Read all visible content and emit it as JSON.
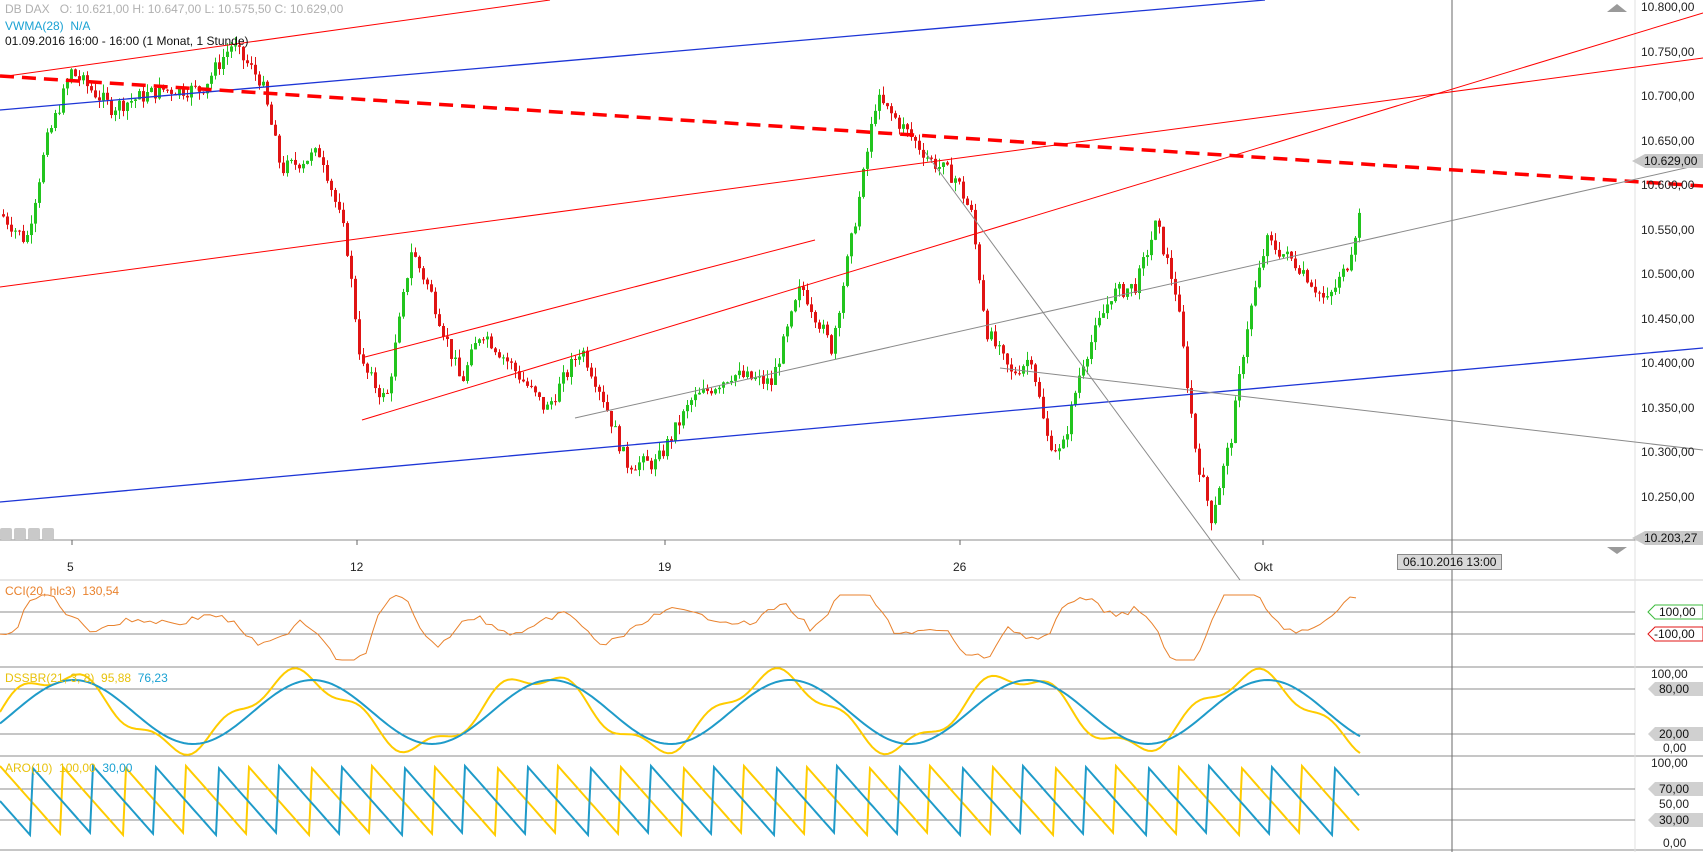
{
  "header": {
    "symbol": "DB DAX",
    "ohlc": "O: 10.621,00   H: 10.647,00   L: 10.575,50   C: 10.629,00",
    "vwma_label": "VWMA(28)",
    "vwma_value": "N/A",
    "period": "01.09.2016 16:00 - 16:00 (1 Monat, 1 Stunde)"
  },
  "price_axis": {
    "labels": [
      "10.800,00",
      "10.750,00",
      "10.700,00",
      "10.650,00",
      "10.600,00",
      "10.550,00",
      "10.500,00",
      "10.450,00",
      "10.400,00",
      "10.350,00",
      "10.300,00",
      "10.250,00"
    ],
    "current_price": "10.629,00",
    "low_marker": "10.203,27"
  },
  "date_axis": {
    "labels": [
      "5",
      "12",
      "19",
      "26",
      "Okt"
    ],
    "crosshair_date": "06.10.2016 13:00"
  },
  "cci_panel": {
    "label": "CCI(20, hlc3)",
    "value": "130,54",
    "level_high": "100,00",
    "level_low": "-100,00"
  },
  "dssbr_panel": {
    "label": "DSSBR(21, 3, 8)",
    "value1": "95,88",
    "value2": "76,23",
    "axis": [
      "100,00",
      "80,00",
      "20,00",
      "0,00"
    ]
  },
  "aro_panel": {
    "label": "ARO(10)",
    "value1": "100,00",
    "value2": "30,00",
    "axis": [
      "100,00",
      "70,00",
      "50,00",
      "30,00",
      "0,00"
    ]
  },
  "colors": {
    "up_candle": "#22c41e",
    "down_candle": "#e01414",
    "trend_red": "#ff0000",
    "trend_blue": "#1d35d6",
    "trend_grey": "#8a8a8a",
    "cci_line": "#e9822d",
    "cci_pos_fill": "#8fd98a",
    "cci_neg_fill": "#f08a8a",
    "dss_fast": "#ffcc00",
    "dss_slow": "#1f9bc9",
    "aro_up": "#ffcc00",
    "aro_down": "#1f9bc9"
  }
}
